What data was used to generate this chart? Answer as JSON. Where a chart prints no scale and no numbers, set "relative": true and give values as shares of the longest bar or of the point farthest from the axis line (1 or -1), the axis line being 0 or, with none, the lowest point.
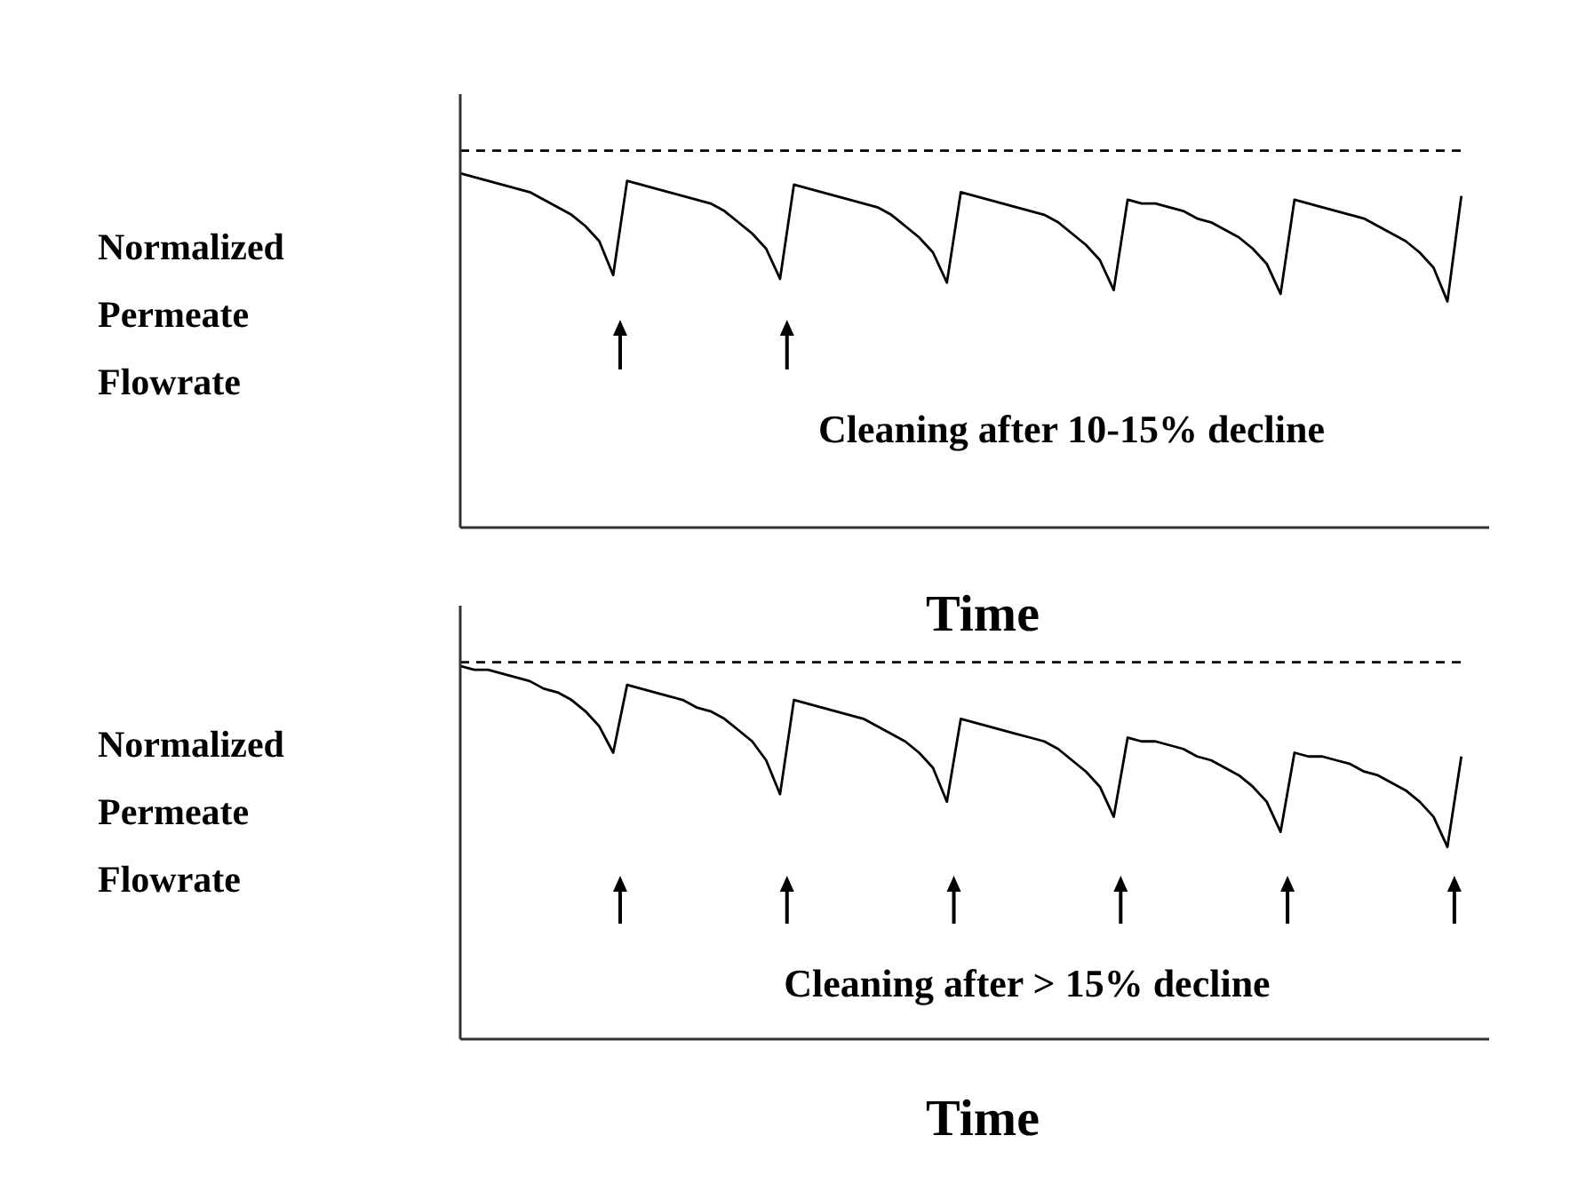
{
  "chart_data": [
    {
      "type": "line",
      "relative": true,
      "ylabel": "Normalized Permeate Flowrate",
      "xlabel": "Time",
      "annotations": [
        "Cleaning after 10-15% decline"
      ],
      "legend": false,
      "grid": false,
      "marker": "none",
      "categories": [
        null,
        null,
        null,
        null,
        null,
        null,
        null,
        null,
        null,
        null,
        null,
        null,
        null,
        null,
        null,
        null,
        null,
        null,
        null,
        null,
        null,
        null,
        null,
        null,
        null,
        null,
        null,
        null,
        null,
        null,
        null,
        null,
        null,
        null,
        null,
        null,
        null,
        null,
        null,
        null,
        null,
        null,
        null,
        null,
        null,
        null,
        null,
        null,
        null,
        null,
        null,
        null,
        null,
        null,
        null,
        null,
        null,
        null,
        null,
        null,
        null,
        null,
        null,
        null,
        null,
        null,
        null,
        null,
        null,
        null,
        null,
        null,
        null,
        null,
        null
      ],
      "series": [
        {
          "color": "#000000",
          "line_style": "solid",
          "values": [
            0.94,
            0.93,
            0.92,
            0.91,
            0.9,
            0.89,
            0.87,
            0.85,
            0.83,
            0.8,
            0.76,
            0.67,
            0.92,
            0.91,
            0.9,
            0.89,
            0.88,
            0.87,
            0.86,
            0.84,
            0.81,
            0.78,
            0.74,
            0.66,
            0.91,
            0.9,
            0.89,
            0.88,
            0.87,
            0.86,
            0.85,
            0.83,
            0.8,
            0.77,
            0.73,
            0.65,
            0.89,
            0.88,
            0.87,
            0.86,
            0.85,
            0.84,
            0.83,
            0.81,
            0.78,
            0.75,
            0.71,
            0.63,
            0.87,
            0.86,
            0.86,
            0.85,
            0.84,
            0.82,
            0.81,
            0.79,
            0.77,
            0.74,
            0.7,
            0.62,
            0.87,
            0.86,
            0.85,
            0.84,
            0.83,
            0.82,
            0.8,
            0.78,
            0.76,
            0.73,
            0.69,
            0.6,
            0.88,
            null,
            null
          ]
        },
        {
          "color": "#000000",
          "line_style": "dashed",
          "values": [
            1,
            1,
            1,
            1,
            1,
            1,
            1,
            1,
            1,
            1,
            1,
            1,
            1,
            1,
            1,
            1,
            1,
            1,
            1,
            1,
            1,
            1,
            1,
            1,
            1,
            1,
            1,
            1,
            1,
            1,
            1,
            1,
            1,
            1,
            1,
            1,
            1,
            1,
            1,
            1,
            1,
            1,
            1,
            1,
            1,
            1,
            1,
            1,
            1,
            1,
            1,
            1,
            1,
            1,
            1,
            1,
            1,
            1,
            1,
            1,
            1,
            1,
            1,
            1,
            1,
            1,
            1,
            1,
            1,
            1,
            1,
            1,
            1,
            null,
            null
          ]
        }
      ]
    },
    {
      "type": "line",
      "relative": true,
      "ylabel": "Normalized Permeate Flowrate",
      "xlabel": "Time",
      "annotations": [
        "Cleaning after > 15% decline"
      ],
      "legend": false,
      "grid": false,
      "marker": "none",
      "categories": [
        null,
        null,
        null,
        null,
        null,
        null,
        null,
        null,
        null,
        null,
        null,
        null,
        null,
        null,
        null,
        null,
        null,
        null,
        null,
        null,
        null,
        null,
        null,
        null,
        null,
        null,
        null,
        null,
        null,
        null,
        null,
        null,
        null,
        null,
        null,
        null,
        null,
        null,
        null,
        null,
        null,
        null,
        null,
        null,
        null,
        null,
        null,
        null,
        null,
        null,
        null,
        null,
        null,
        null,
        null,
        null,
        null,
        null,
        null,
        null,
        null,
        null,
        null,
        null,
        null,
        null,
        null,
        null,
        null,
        null,
        null,
        null,
        null,
        null,
        null
      ],
      "series": [
        {
          "color": "#000000",
          "line_style": "solid",
          "values": [
            0.99,
            0.98,
            0.98,
            0.97,
            0.96,
            0.95,
            0.93,
            0.92,
            0.9,
            0.87,
            0.83,
            0.76,
            0.94,
            0.93,
            0.92,
            0.91,
            0.9,
            0.88,
            0.87,
            0.85,
            0.82,
            0.79,
            0.74,
            0.65,
            0.9,
            0.89,
            0.88,
            0.87,
            0.86,
            0.85,
            0.83,
            0.81,
            0.79,
            0.76,
            0.72,
            0.63,
            0.85,
            0.84,
            0.83,
            0.82,
            0.81,
            0.8,
            0.79,
            0.77,
            0.74,
            0.71,
            0.67,
            0.59,
            0.8,
            0.79,
            0.79,
            0.78,
            0.77,
            0.75,
            0.74,
            0.72,
            0.7,
            0.67,
            0.63,
            0.55,
            0.76,
            0.75,
            0.75,
            0.74,
            0.73,
            0.71,
            0.7,
            0.68,
            0.66,
            0.63,
            0.59,
            0.51,
            0.75,
            null,
            null
          ]
        },
        {
          "color": "#000000",
          "line_style": "dashed",
          "values": [
            1,
            1,
            1,
            1,
            1,
            1,
            1,
            1,
            1,
            1,
            1,
            1,
            1,
            1,
            1,
            1,
            1,
            1,
            1,
            1,
            1,
            1,
            1,
            1,
            1,
            1,
            1,
            1,
            1,
            1,
            1,
            1,
            1,
            1,
            1,
            1,
            1,
            1,
            1,
            1,
            1,
            1,
            1,
            1,
            1,
            1,
            1,
            1,
            1,
            1,
            1,
            1,
            1,
            1,
            1,
            1,
            1,
            1,
            1,
            1,
            1,
            1,
            1,
            1,
            1,
            1,
            1,
            1,
            1,
            1,
            1,
            1,
            1,
            null,
            null
          ]
        }
      ]
    }
  ]
}
